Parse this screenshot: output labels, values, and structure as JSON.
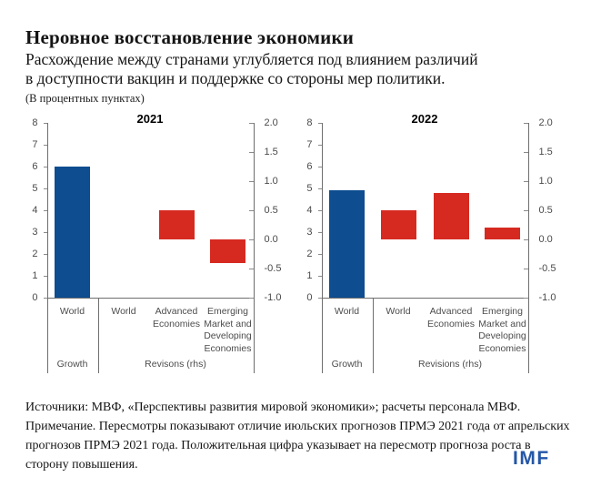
{
  "header": {
    "title": "Неровное восстановление экономики",
    "subtitle_line1": "Расхождение между странами углубляется под влиянием различий",
    "subtitle_line2": "в доступности вакцин и поддержке со стороны мер политики.",
    "units": "(В процентных пунктах)"
  },
  "chart_data": {
    "type": "bar",
    "note": "Two-panel bar chart; blue growth bar on left-hand axis (0-8), red revision bars on right-hand axis (-1.0 to 2.0)",
    "colors": {
      "growth_bar": "#0d4d90",
      "revision_bar": "#d62a21"
    },
    "panels": [
      {
        "title": "2021",
        "left_axis": {
          "min": 0,
          "max": 8,
          "tick_step": 1
        },
        "right_axis": {
          "min": -1.0,
          "max": 2.0,
          "tick_step": 0.5
        },
        "growth_section": {
          "label": "Growth",
          "bars": [
            {
              "category": "World",
              "value": 6.0
            }
          ]
        },
        "revisions_section": {
          "label": "Revisons (rhs)",
          "bars": [
            {
              "category": "World",
              "value": 0.0
            },
            {
              "category": "Advanced\nEconomies",
              "value": 0.5
            },
            {
              "category": "Emerging\nMarket and\nDeveloping\nEconomies",
              "value": -0.4
            }
          ]
        }
      },
      {
        "title": "2022",
        "left_axis": {
          "min": 0,
          "max": 8,
          "tick_step": 1
        },
        "right_axis": {
          "min": -1.0,
          "max": 2.0,
          "tick_step": 0.5
        },
        "growth_section": {
          "label": "Growth",
          "bars": [
            {
              "category": "World",
              "value": 4.9
            }
          ]
        },
        "revisions_section": {
          "label": "Revisions (rhs)",
          "bars": [
            {
              "category": "World",
              "value": 0.5
            },
            {
              "category": "Advanced\nEconomies",
              "value": 0.8
            },
            {
              "category": "Emerging\nMarket and\nDeveloping\nEconomies",
              "value": 0.2
            }
          ]
        }
      }
    ]
  },
  "footer": {
    "sources": "Источники: МВФ, «Перспективы развития мировой экономики»; расчеты персонала МВФ.",
    "note": "Примечание. Пересмотры показывают отличие июльских прогнозов ПРМЭ 2021 года от апрельских прогнозов ПРМЭ 2021 года. Положительная цифра указывает на пересмотр прогноза роста в сторону повышения.",
    "logo": "IMF",
    "logo_color": "#2456a7"
  }
}
